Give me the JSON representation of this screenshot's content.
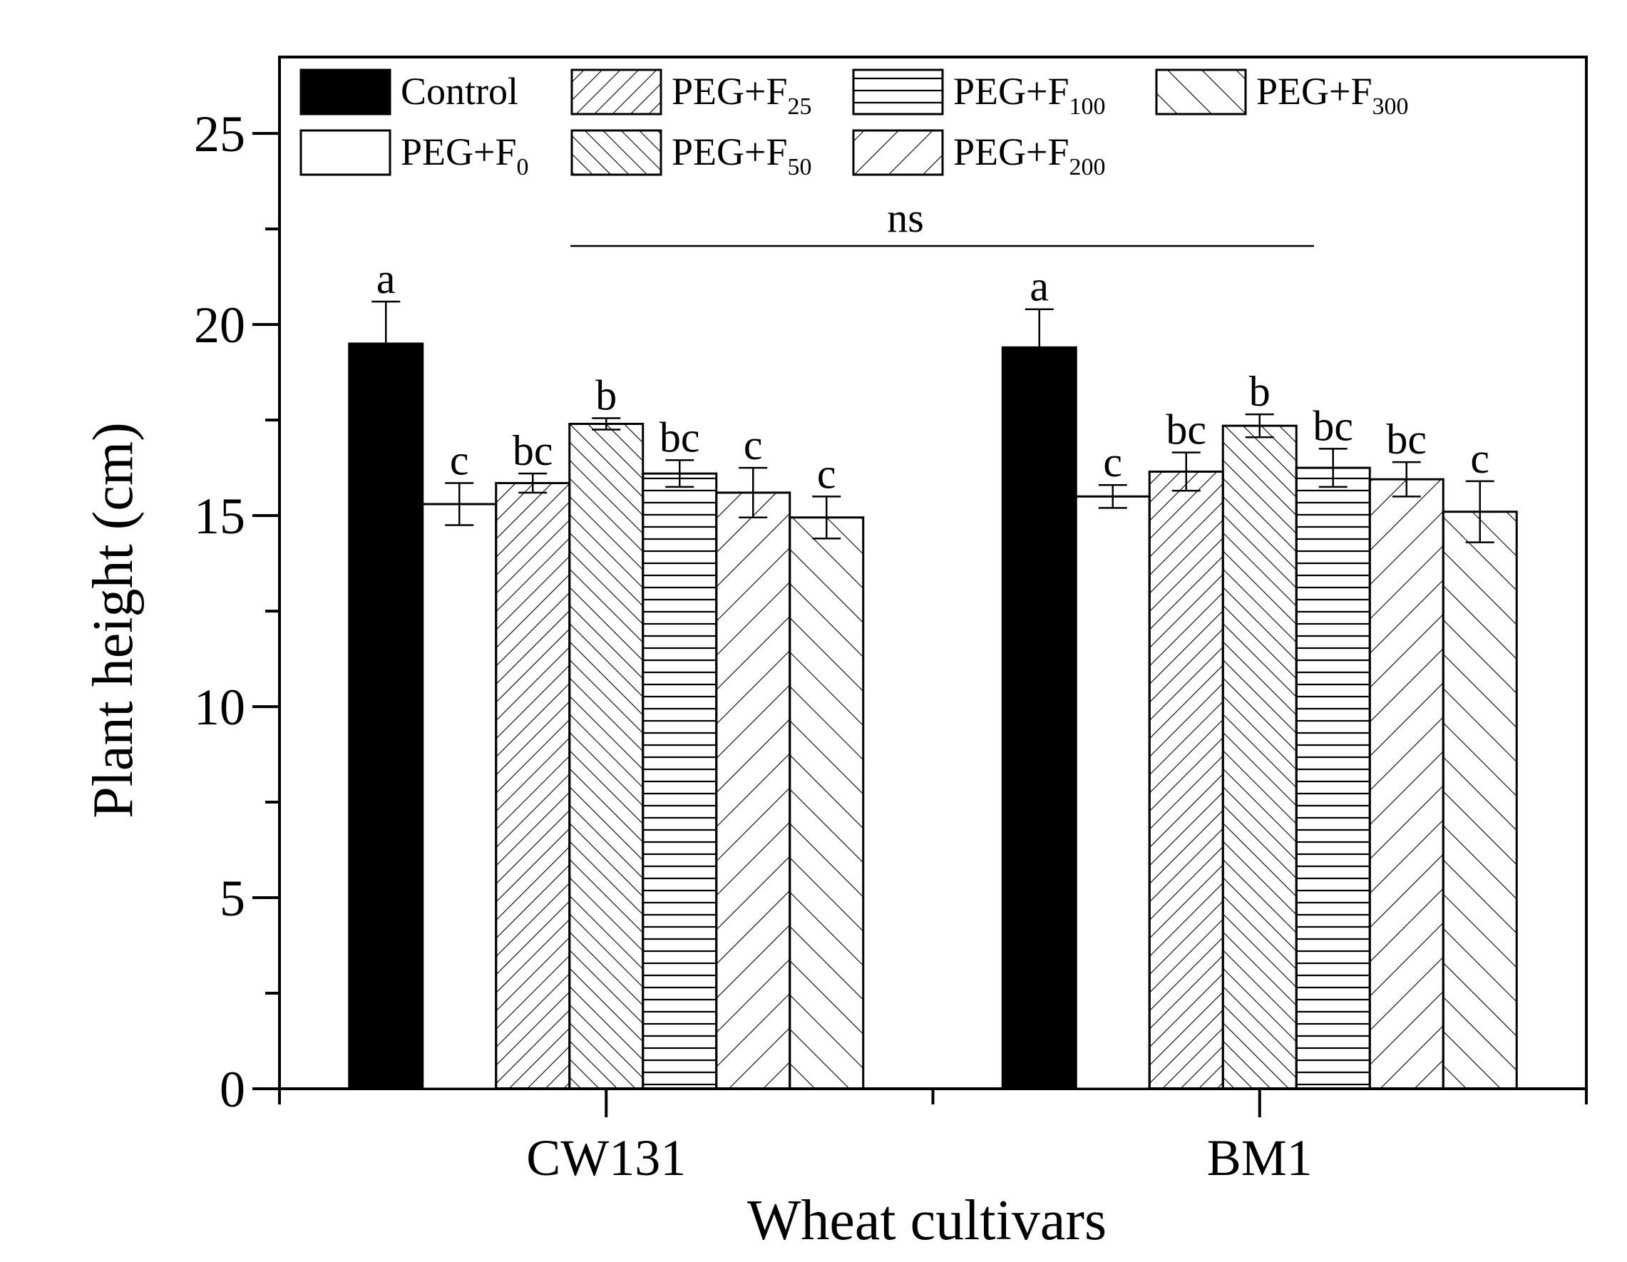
{
  "chart_data": {
    "type": "bar",
    "xlabel": "Wheat cultivars",
    "ylabel": "Plant height (cm)",
    "ylim": [
      0,
      27
    ],
    "yticks": [
      0,
      5,
      10,
      15,
      20,
      25
    ],
    "grid": false,
    "legend_position": "top",
    "categories": [
      "CW131",
      "BM1"
    ],
    "significance_note": "ns",
    "series": [
      {
        "name": "Control",
        "sub": "",
        "pattern": "solid",
        "values": [
          19.5,
          19.4
        ],
        "errors": [
          1.1,
          1.0
        ],
        "labels": [
          "a",
          "a"
        ]
      },
      {
        "name": "PEG+F",
        "sub": "0",
        "pattern": "empty",
        "values": [
          15.3,
          15.5
        ],
        "errors": [
          0.55,
          0.3
        ],
        "labels": [
          "c",
          "c"
        ]
      },
      {
        "name": "PEG+F",
        "sub": "25",
        "pattern": "hatch-forward-dense",
        "values": [
          15.85,
          16.15
        ],
        "errors": [
          0.25,
          0.5
        ],
        "labels": [
          "bc",
          "bc"
        ]
      },
      {
        "name": "PEG+F",
        "sub": "50",
        "pattern": "hatch-back-dense",
        "values": [
          17.4,
          17.35
        ],
        "errors": [
          0.15,
          0.3
        ],
        "labels": [
          "b",
          "b"
        ]
      },
      {
        "name": "PEG+F",
        "sub": "100",
        "pattern": "horizontal",
        "values": [
          16.1,
          16.25
        ],
        "errors": [
          0.35,
          0.5
        ],
        "labels": [
          "bc",
          "bc"
        ]
      },
      {
        "name": "PEG+F",
        "sub": "200",
        "pattern": "hatch-forward-sparse",
        "values": [
          15.6,
          15.95
        ],
        "errors": [
          0.65,
          0.45
        ],
        "labels": [
          "c",
          "bc"
        ]
      },
      {
        "name": "PEG+F",
        "sub": "300",
        "pattern": "hatch-back-sparse",
        "values": [
          14.95,
          15.1
        ],
        "errors": [
          0.55,
          0.8
        ],
        "labels": [
          "c",
          "c"
        ]
      }
    ],
    "colors": {
      "ink": "#000000",
      "background": "#ffffff"
    }
  }
}
